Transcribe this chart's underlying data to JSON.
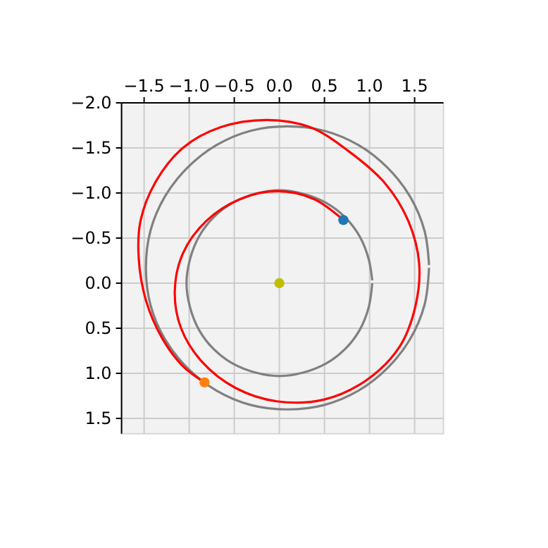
{
  "chart_data": {
    "type": "line",
    "xlim": [
      -1.75,
      1.82
    ],
    "ylim": [
      1.67,
      -2.0
    ],
    "xticks": [
      {
        "value": -1.5,
        "label": "−1.5"
      },
      {
        "value": -1.0,
        "label": "−1.0"
      },
      {
        "value": -0.5,
        "label": "−0.5"
      },
      {
        "value": 0,
        "label": "0.0"
      },
      {
        "value": 0.5,
        "label": "0.5"
      },
      {
        "value": 1.0,
        "label": "1.0"
      },
      {
        "value": 1.5,
        "label": "1.5"
      }
    ],
    "yticks": [
      {
        "value": -2.0,
        "label": "−2.0"
      },
      {
        "value": -1.5,
        "label": "−1.5"
      },
      {
        "value": -1.0,
        "label": "−1.0"
      },
      {
        "value": -0.5,
        "label": "−0.5"
      },
      {
        "value": 0,
        "label": "0.0"
      },
      {
        "value": 0.5,
        "label": "0.5"
      },
      {
        "value": 1.0,
        "label": "1.0"
      },
      {
        "value": 1.5,
        "label": "1.5"
      }
    ],
    "grid": true,
    "series": [
      {
        "color": "#808080",
        "x": [
          1.03,
          0.99,
          0.89,
          0.73,
          0.52,
          0.27,
          0,
          -0.27,
          -0.52,
          -0.73,
          -0.89,
          -0.99,
          -1.03,
          -0.99,
          -0.89,
          -0.73,
          -0.52,
          -0.27,
          0,
          0.27,
          0.52,
          0.73,
          0.89,
          0.99,
          1.03
        ],
        "values": [
          0,
          0.27,
          0.52,
          0.73,
          0.89,
          0.99,
          1.03,
          0.99,
          0.89,
          0.73,
          0.52,
          0.27,
          0,
          -0.27,
          -0.52,
          -0.73,
          -0.89,
          -0.99,
          -1.03,
          -0.99,
          -0.89,
          -0.73,
          -0.52,
          -0.27,
          -0.03
        ]
      },
      {
        "color": "#808080",
        "x": [
          1.66,
          1.61,
          1.45,
          1.2,
          0.88,
          0.5,
          0.09,
          -0.32,
          -0.7,
          -1.02,
          -1.27,
          -1.43,
          -1.48,
          -1.43,
          -1.27,
          -1.02,
          -0.7,
          -0.32,
          0.09,
          0.5,
          0.88,
          1.2,
          1.45,
          1.61,
          1.66
        ],
        "values": [
          -0.17,
          0.24,
          0.62,
          0.94,
          1.19,
          1.35,
          1.4,
          1.35,
          1.19,
          0.94,
          0.62,
          0.24,
          -0.17,
          -0.58,
          -0.96,
          -1.28,
          -1.53,
          -1.69,
          -1.74,
          -1.69,
          -1.53,
          -1.28,
          -0.96,
          -0.58,
          -0.2
        ]
      },
      {
        "color": "#ff0000",
        "x": [
          0.71,
          0.39,
          -0.03,
          -0.44,
          -0.81,
          -1.07,
          -1.16,
          -1.09,
          -0.86,
          -0.49,
          -0.03,
          0.5,
          0.96,
          1.33,
          1.51,
          1.55,
          1.43,
          1.17,
          0.76,
          0.34,
          -0.13,
          -0.65,
          -1.07,
          -1.38,
          -1.54,
          -1.56,
          -1.48,
          -1.3,
          -1.07,
          -0.83
        ],
        "values": [
          -0.7,
          -0.93,
          -1.02,
          -0.93,
          -0.69,
          -0.33,
          0.09,
          0.5,
          0.87,
          1.16,
          1.31,
          1.29,
          1.08,
          0.71,
          0.25,
          -0.22,
          -0.69,
          -1.11,
          -1.47,
          -1.73,
          -1.81,
          -1.73,
          -1.5,
          -1.11,
          -0.69,
          -0.28,
          0.19,
          0.61,
          0.92,
          1.1
        ]
      },
      {
        "type": "scatter",
        "marker": "circle",
        "color": "#bfbf00",
        "x": [
          0
        ],
        "values": [
          0
        ]
      },
      {
        "type": "scatter",
        "marker": "circle",
        "color": "#1f77b4",
        "x": [
          0.71
        ],
        "values": [
          -0.7
        ]
      },
      {
        "type": "scatter",
        "marker": "circle",
        "color": "#ff7f0e",
        "x": [
          -0.83
        ],
        "values": [
          1.1
        ]
      }
    ]
  }
}
